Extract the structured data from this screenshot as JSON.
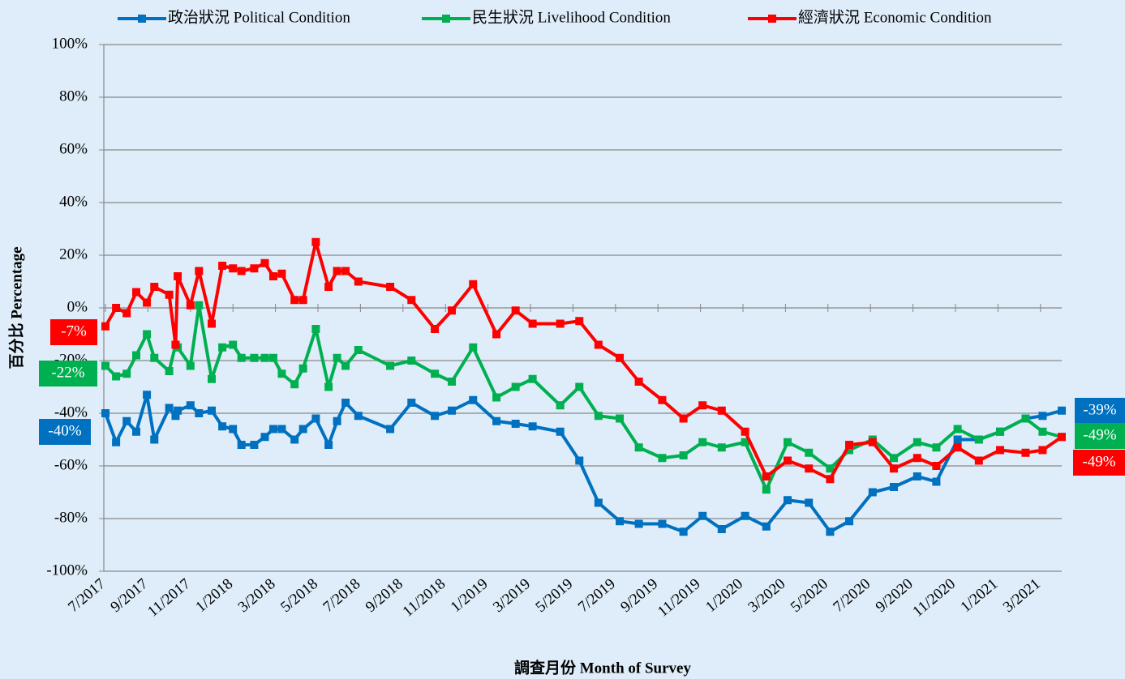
{
  "chart_data": {
    "type": "line",
    "xlabel": "調查月份 Month of Survey",
    "ylabel": "百分比 Percentage",
    "x": [
      0,
      0.5,
      1,
      1.45,
      1.95,
      2.3,
      3,
      3.3,
      3.4,
      4,
      4.4,
      5,
      5.5,
      6,
      6.4,
      7,
      7.5,
      7.9,
      8.3,
      8.9,
      9.3,
      9.9,
      10.5,
      10.9,
      11.3,
      11.9,
      13.4,
      14.4,
      15.5,
      16.3,
      17.3,
      18.4,
      19.3,
      20.1,
      21.4,
      22.3,
      23.2,
      24.2,
      25.1,
      26.2,
      27.2,
      28.1,
      29,
      30.1,
      31.1,
      32.1,
      33.1,
      34.1,
      35,
      36.1,
      37.1,
      38.2,
      39.1,
      40.1,
      41.1,
      42.1,
      43.3,
      44.1,
      45
    ],
    "xlim": [
      0,
      45
    ],
    "xticks": [
      {
        "value": 0,
        "label": "7/2017"
      },
      {
        "value": 2,
        "label": "9/2017"
      },
      {
        "value": 4,
        "label": "11/2017"
      },
      {
        "value": 6,
        "label": "1/2018"
      },
      {
        "value": 8,
        "label": "3/2018"
      },
      {
        "value": 10,
        "label": "5/2018"
      },
      {
        "value": 12,
        "label": "7/2018"
      },
      {
        "value": 14,
        "label": "9/2018"
      },
      {
        "value": 16,
        "label": "11/2018"
      },
      {
        "value": 18,
        "label": "1/2019"
      },
      {
        "value": 20,
        "label": "3/2019"
      },
      {
        "value": 22,
        "label": "5/2019"
      },
      {
        "value": 24,
        "label": "7/2019"
      },
      {
        "value": 26,
        "label": "9/2019"
      },
      {
        "value": 28,
        "label": "11/2019"
      },
      {
        "value": 30,
        "label": "1/2020"
      },
      {
        "value": 32,
        "label": "3/2020"
      },
      {
        "value": 34,
        "label": "5/2020"
      },
      {
        "value": 36,
        "label": "7/2020"
      },
      {
        "value": 38,
        "label": "9/2020"
      },
      {
        "value": 40,
        "label": "11/2020"
      },
      {
        "value": 42,
        "label": "1/2021"
      },
      {
        "value": 44,
        "label": "3/2021"
      }
    ],
    "ylim": [
      -100,
      100
    ],
    "yticks": [
      {
        "value": -100,
        "label": "-100%"
      },
      {
        "value": -80,
        "label": "-80%"
      },
      {
        "value": -60,
        "label": "-60%"
      },
      {
        "value": -40,
        "label": "-40%"
      },
      {
        "value": -20,
        "label": "-20%"
      },
      {
        "value": 0,
        "label": "0%"
      },
      {
        "value": 20,
        "label": "20%"
      },
      {
        "value": 40,
        "label": "40%"
      },
      {
        "value": 60,
        "label": "60%"
      },
      {
        "value": 80,
        "label": "80%"
      },
      {
        "value": 100,
        "label": "100%"
      }
    ],
    "grid": true,
    "legend": "top",
    "series": [
      {
        "name": "政治狀況 Political Condition",
        "color": "#0070c0",
        "values": [
          -40,
          -51,
          -43,
          -47,
          -33,
          -50,
          -38,
          -41,
          -39,
          -37,
          -40,
          -39,
          -45,
          -46,
          -52,
          -52,
          -49,
          -46,
          -46,
          -50,
          -46,
          -42,
          -52,
          -43,
          -36,
          -41,
          -46,
          -36,
          -41,
          -39,
          -35,
          -43,
          -44,
          -45,
          -47,
          -58,
          -74,
          -81,
          -82,
          -82,
          -85,
          -79,
          -84,
          -79,
          -83,
          -73,
          -74,
          -85,
          -81,
          -70,
          -68,
          -64,
          -66,
          -50,
          -50,
          -47,
          -42,
          -41,
          -39
        ],
        "value_labels": [
          "-40%",
          null,
          null,
          null,
          null,
          null,
          null,
          null,
          null,
          null,
          null,
          null,
          null,
          null,
          null,
          null,
          null,
          null,
          null,
          null,
          null,
          null,
          null,
          null,
          null,
          null,
          null,
          null,
          null,
          null,
          null,
          null,
          null,
          null,
          null,
          null,
          null,
          null,
          null,
          null,
          null,
          null,
          null,
          null,
          null,
          null,
          null,
          null,
          null,
          null,
          null,
          null,
          null,
          null,
          null,
          null,
          null,
          null,
          "-39%"
        ]
      },
      {
        "name": "民生狀況 Livelihood Condition",
        "color": "#00b050",
        "values": [
          -22,
          -26,
          -25,
          -18,
          -10,
          -19,
          -24,
          -14,
          -15,
          -22,
          1,
          -27,
          -15,
          -14,
          -19,
          -19,
          -19,
          -19,
          -25,
          -29,
          -23,
          -8,
          -30,
          -19,
          -22,
          -16,
          -22,
          -20,
          -25,
          -28,
          -15,
          -34,
          -30,
          -27,
          -37,
          -30,
          -41,
          -42,
          -53,
          -57,
          -56,
          -51,
          -53,
          -51,
          -69,
          -51,
          -55,
          -61,
          -54,
          -50,
          -57,
          -51,
          -53,
          -46,
          -50,
          -47,
          -42,
          -47,
          -49
        ],
        "value_labels": [
          "-22%",
          null,
          null,
          null,
          null,
          null,
          null,
          null,
          null,
          null,
          null,
          null,
          null,
          null,
          null,
          null,
          null,
          null,
          null,
          null,
          null,
          null,
          null,
          null,
          null,
          null,
          null,
          null,
          null,
          null,
          null,
          null,
          null,
          null,
          null,
          null,
          null,
          null,
          null,
          null,
          null,
          null,
          null,
          null,
          null,
          null,
          null,
          null,
          null,
          null,
          null,
          null,
          null,
          null,
          null,
          null,
          null,
          null,
          "-49%"
        ]
      },
      {
        "name": "經濟狀況 Economic Condition",
        "color": "#ff0000",
        "values": [
          -7,
          0,
          -2,
          6,
          2,
          8,
          5,
          -14,
          12,
          1,
          14,
          -6,
          16,
          15,
          14,
          15,
          17,
          12,
          13,
          3,
          3,
          25,
          8,
          14,
          14,
          10,
          8,
          3,
          -8,
          -1,
          9,
          -10,
          -1,
          -6,
          -6,
          -5,
          -14,
          -19,
          -28,
          -35,
          -42,
          -37,
          -39,
          -47,
          -64,
          -58,
          -61,
          -65,
          -52,
          -51,
          -61,
          -57,
          -60,
          -53,
          -58,
          -54,
          -55,
          -54,
          -49
        ],
        "value_labels": [
          "-7%",
          null,
          null,
          null,
          null,
          null,
          null,
          null,
          null,
          null,
          null,
          null,
          null,
          null,
          null,
          null,
          null,
          null,
          null,
          null,
          null,
          null,
          null,
          null,
          null,
          null,
          null,
          null,
          null,
          null,
          null,
          null,
          null,
          null,
          null,
          null,
          null,
          null,
          null,
          null,
          null,
          null,
          null,
          null,
          null,
          null,
          null,
          null,
          null,
          null,
          null,
          null,
          null,
          null,
          null,
          null,
          null,
          null,
          "-49%"
        ]
      }
    ]
  }
}
